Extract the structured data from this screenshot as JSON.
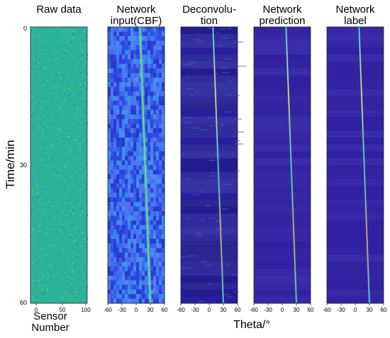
{
  "figure": {
    "y_axis_label": "Time/min",
    "x_axis_label": "Theta/°",
    "time_ticks": [
      "0",
      "30",
      "60"
    ],
    "panels": [
      {
        "id": "raw",
        "title": [
          "Raw data"
        ],
        "x_ticks": [
          "0",
          "50",
          "100"
        ],
        "x_label": [
          "Sensor",
          "Number"
        ],
        "colormap": "noise",
        "base_color": "#2db39a"
      },
      {
        "id": "cbf",
        "title": [
          "Network",
          "input(CBF)"
        ],
        "x_ticks": [
          "-60",
          "-30",
          "0",
          "30",
          "60"
        ],
        "colormap": "cbf",
        "base_color": "#3a58e6"
      },
      {
        "id": "deconv",
        "title": [
          "Deconvolu-",
          "tion"
        ],
        "x_ticks": [
          "-60",
          "-30",
          "0",
          "30",
          "60"
        ],
        "colormap": "deconv",
        "base_color": "#2b1f9a"
      },
      {
        "id": "pred",
        "title": [
          "Network",
          "prediction"
        ],
        "x_ticks": [
          "-60",
          "-30",
          "0",
          "30",
          "60"
        ],
        "colormap": "pred",
        "base_color": "#3526a6"
      },
      {
        "id": "label",
        "title": [
          "Network",
          "label"
        ],
        "x_ticks": [
          "-60",
          "-30",
          "0",
          "30",
          "60"
        ],
        "colormap": "label",
        "base_color": "#3323a3"
      }
    ],
    "target_track": {
      "theta_start_deg": 8,
      "theta_end_deg": 30,
      "time_start_min": 0,
      "time_end_min": 60
    }
  }
}
